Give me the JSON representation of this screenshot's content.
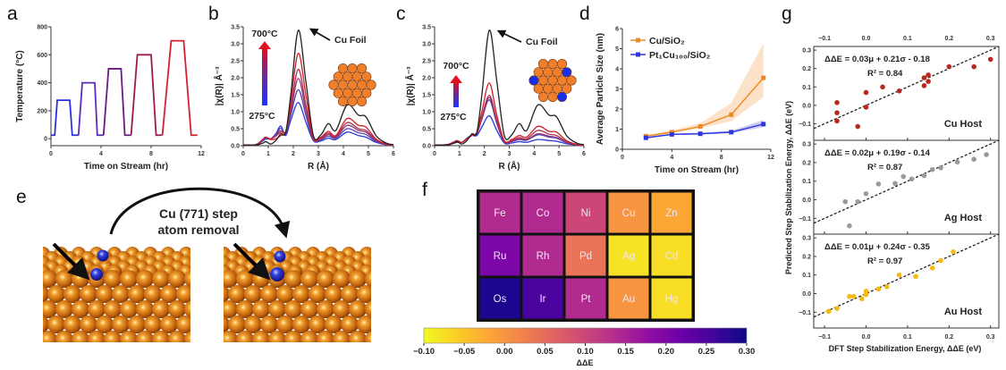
{
  "panel_labels": {
    "a": "a",
    "b": "b",
    "c": "c",
    "d": "d",
    "e": "e",
    "f": "f",
    "g": "g"
  },
  "panel_e": {
    "caption_line1": "Cu (771) step",
    "caption_line2": "atom removal",
    "copper_color": "#c8680f",
    "dopant_color": "#2a30d0"
  },
  "chart_data": [
    {
      "panel": "a",
      "type": "line",
      "xlabel": "Time on Stream (hr)",
      "ylabel": "Temperature (°C)",
      "xlim": [
        0,
        12
      ],
      "ylim": [
        -50,
        800
      ],
      "xtick_labels": [
        "0",
        "4",
        "8",
        "12"
      ],
      "ytick_labels": [
        "0",
        "200",
        "400",
        "600",
        "800"
      ],
      "series": [
        {
          "color": "#2b2fe0",
          "x": [
            0,
            0.3,
            0.5,
            1.5,
            1.7,
            2.2
          ],
          "y": [
            25,
            25,
            275,
            275,
            25,
            25
          ]
        },
        {
          "color": "#5a2bbb",
          "x": [
            2.2,
            2.5,
            3.5,
            3.7,
            4.2
          ],
          "y": [
            25,
            400,
            400,
            25,
            25
          ]
        },
        {
          "color": "#6c1a84",
          "x": [
            4.2,
            4.6,
            5.6,
            5.9,
            6.4
          ],
          "y": [
            25,
            500,
            500,
            25,
            25
          ]
        },
        {
          "color": "#9c1a55",
          "x": [
            6.4,
            6.9,
            8.0,
            8.4,
            8.9
          ],
          "y": [
            25,
            600,
            600,
            25,
            25
          ]
        },
        {
          "color": "#d4202f",
          "x": [
            8.9,
            9.6,
            10.6,
            11.2,
            11.7
          ],
          "y": [
            25,
            700,
            700,
            25,
            25
          ]
        }
      ]
    },
    {
      "panel": "b",
      "type": "line",
      "xlabel": "R (Å)",
      "ylabel": "|χ(R)| Å⁻³",
      "xlim": [
        0,
        6
      ],
      "ylim": [
        0,
        3.5
      ],
      "xtick_labels": [
        "0",
        "1",
        "2",
        "3",
        "4",
        "5",
        "6"
      ],
      "ytick_labels": [
        "0.0",
        "0.5",
        "1.0",
        "1.5",
        "2.0",
        "2.5",
        "3.0",
        "3.5"
      ],
      "annotations": {
        "high_temp": "700°C",
        "low_temp": "275°C",
        "reference": "Cu Foil"
      },
      "x": [
        0,
        0.5,
        0.8,
        0.9,
        1.1,
        1.3,
        1.5,
        1.7,
        1.9,
        2.2,
        2.5,
        2.8,
        3.1,
        3.4,
        3.7,
        4.15,
        4.6,
        4.9,
        5.3,
        5.7,
        6
      ],
      "series": [
        {
          "name": "Cu Foil",
          "color": "#222222",
          "y": [
            0.02,
            0.02,
            0.08,
            0.12,
            0.05,
            0.15,
            0.35,
            0.4,
            1.5,
            3.4,
            1.9,
            0.3,
            0.32,
            0.65,
            0.45,
            1.2,
            0.9,
            0.85,
            0.3,
            0.08,
            0.03
          ]
        },
        {
          "color": "#d0202a",
          "y": [
            0.02,
            0.03,
            0.2,
            0.25,
            0.18,
            0.2,
            0.3,
            0.42,
            1.3,
            2.72,
            1.5,
            0.25,
            0.25,
            0.42,
            0.3,
            0.8,
            0.6,
            0.55,
            0.2,
            0.05,
            0.02
          ]
        },
        {
          "color": "#b03050",
          "y": [
            0.02,
            0.03,
            0.2,
            0.25,
            0.2,
            0.28,
            0.4,
            0.42,
            1.1,
            2.25,
            1.2,
            0.22,
            0.22,
            0.37,
            0.27,
            0.68,
            0.5,
            0.45,
            0.18,
            0.05,
            0.02
          ]
        },
        {
          "color": "#8a3a78",
          "y": [
            0.02,
            0.03,
            0.2,
            0.25,
            0.2,
            0.3,
            0.45,
            0.4,
            1.0,
            1.98,
            1.05,
            0.2,
            0.2,
            0.33,
            0.25,
            0.6,
            0.45,
            0.4,
            0.15,
            0.04,
            0.02
          ]
        },
        {
          "color": "#5a40b0",
          "y": [
            0.02,
            0.03,
            0.18,
            0.22,
            0.2,
            0.32,
            0.52,
            0.35,
            0.9,
            1.65,
            0.9,
            0.17,
            0.17,
            0.28,
            0.22,
            0.5,
            0.38,
            0.33,
            0.13,
            0.04,
            0.02
          ]
        },
        {
          "color": "#2a3ad8",
          "y": [
            0.02,
            0.03,
            0.15,
            0.2,
            0.2,
            0.35,
            0.58,
            0.3,
            0.75,
            1.27,
            0.7,
            0.15,
            0.14,
            0.22,
            0.18,
            0.4,
            0.3,
            0.25,
            0.1,
            0.03,
            0.02
          ]
        }
      ]
    },
    {
      "panel": "c",
      "type": "line",
      "xlabel": "R (Å)",
      "ylabel": "|χ(R)| Å⁻³",
      "xlim": [
        0,
        6
      ],
      "ylim": [
        0,
        3.5
      ],
      "xtick_labels": [
        "0",
        "1",
        "2",
        "3",
        "4",
        "5",
        "6"
      ],
      "ytick_labels": [
        "0.0",
        "0.5",
        "1.0",
        "1.5",
        "2.0",
        "2.5",
        "3.0",
        "3.5"
      ],
      "annotations": {
        "high_temp": "700°C",
        "low_temp": "275°C",
        "reference": "Cu Foil"
      },
      "x": [
        0,
        0.5,
        0.8,
        0.9,
        1.1,
        1.3,
        1.5,
        1.7,
        1.9,
        2.2,
        2.5,
        2.8,
        3.1,
        3.4,
        3.7,
        4.15,
        4.6,
        4.9,
        5.3,
        5.7,
        6
      ],
      "series": [
        {
          "name": "Cu Foil",
          "color": "#222222",
          "y": [
            0.02,
            0.02,
            0.08,
            0.12,
            0.05,
            0.15,
            0.35,
            0.4,
            1.5,
            3.4,
            1.9,
            0.3,
            0.32,
            0.65,
            0.45,
            1.2,
            0.9,
            0.85,
            0.3,
            0.08,
            0.03
          ]
        },
        {
          "color": "#d0202a",
          "y": [
            0.02,
            0.03,
            0.12,
            0.15,
            0.1,
            0.2,
            0.3,
            0.4,
            1.0,
            1.85,
            0.9,
            0.15,
            0.18,
            0.3,
            0.25,
            0.57,
            0.42,
            0.4,
            0.15,
            0.04,
            0.02
          ]
        },
        {
          "color": "#b03050",
          "y": [
            0.02,
            0.03,
            0.12,
            0.14,
            0.1,
            0.2,
            0.3,
            0.38,
            0.85,
            1.48,
            0.75,
            0.13,
            0.15,
            0.24,
            0.2,
            0.45,
            0.34,
            0.3,
            0.12,
            0.03,
            0.02
          ]
        },
        {
          "color": "#8a3a78",
          "y": [
            0.02,
            0.03,
            0.1,
            0.13,
            0.1,
            0.2,
            0.3,
            0.36,
            0.8,
            1.42,
            0.7,
            0.12,
            0.13,
            0.2,
            0.17,
            0.35,
            0.28,
            0.24,
            0.1,
            0.03,
            0.02
          ]
        },
        {
          "color": "#5a40b0",
          "y": [
            0.02,
            0.03,
            0.1,
            0.12,
            0.1,
            0.22,
            0.32,
            0.35,
            0.78,
            1.35,
            0.65,
            0.11,
            0.12,
            0.18,
            0.16,
            0.32,
            0.25,
            0.22,
            0.09,
            0.03,
            0.02
          ]
        },
        {
          "color": "#2a3ad8",
          "y": [
            0.02,
            0.03,
            0.08,
            0.1,
            0.1,
            0.22,
            0.3,
            0.3,
            0.55,
            0.88,
            0.45,
            0.08,
            0.08,
            0.12,
            0.1,
            0.18,
            0.15,
            0.13,
            0.06,
            0.02,
            0.02
          ]
        }
      ]
    },
    {
      "panel": "d",
      "type": "line",
      "xlabel": "Time on Stream (hr)",
      "ylabel": "Average Particle Size (nm)",
      "xlim": [
        0,
        12
      ],
      "ylim": [
        0,
        6
      ],
      "xtick_labels": [
        "0",
        "4",
        "8",
        "12"
      ],
      "ytick_labels": [
        "0",
        "1",
        "2",
        "3",
        "4",
        "5",
        "6"
      ],
      "legend": "top-left",
      "series": [
        {
          "name": "Cu/SiO₂",
          "color": "#ef8a22",
          "x": [
            1.9,
            4,
            6.3,
            8.8,
            11.4
          ],
          "y": [
            0.65,
            0.85,
            1.13,
            1.72,
            3.55
          ],
          "lower": [
            0.6,
            0.8,
            1.05,
            1.4,
            2.6
          ],
          "upper": [
            0.7,
            0.95,
            1.3,
            2.3,
            5.25
          ]
        },
        {
          "name": "Pt₁Cu₁₀₀/SiO₂",
          "color": "#2c34e0",
          "x": [
            1.9,
            4,
            6.3,
            8.8,
            11.4
          ],
          "y": [
            0.57,
            0.74,
            0.77,
            0.85,
            1.25
          ],
          "lower": [
            0.53,
            0.7,
            0.73,
            0.8,
            1.1
          ],
          "upper": [
            0.61,
            0.78,
            0.82,
            0.92,
            1.45
          ]
        }
      ]
    },
    {
      "panel": "f",
      "type": "heatmap",
      "colorbar_label": "ΔΔE",
      "clim": [
        -0.1,
        0.3
      ],
      "colormap": "plasma (reversed)",
      "colorbar_tick_labels": [
        "−0.10",
        "−0.05",
        "0.00",
        "0.05",
        "0.10",
        "0.15",
        "0.20",
        "0.25",
        "0.30"
      ],
      "rows": [
        [
          {
            "el": "Fe",
            "v": 0.14
          },
          {
            "el": "Co",
            "v": 0.14
          },
          {
            "el": "Ni",
            "v": 0.1
          },
          {
            "el": "Cu",
            "v": 0.0
          },
          {
            "el": "Zn",
            "v": -0.02
          }
        ],
        [
          {
            "el": "Ru",
            "v": 0.2
          },
          {
            "el": "Rh",
            "v": 0.14
          },
          {
            "el": "Pd",
            "v": 0.04
          },
          {
            "el": "Ag",
            "v": -0.08
          },
          {
            "el": "Cd",
            "v": -0.075
          }
        ],
        [
          {
            "el": "Os",
            "v": 0.29
          },
          {
            "el": "Ir",
            "v": 0.25
          },
          {
            "el": "Pt",
            "v": 0.14
          },
          {
            "el": "Au",
            "v": 0.0
          },
          {
            "el": "Hg",
            "v": -0.075
          }
        ]
      ]
    },
    {
      "panel": "g",
      "type": "scatter",
      "xlabel": "DFT Step Stabilization Energy, ΔΔE (eV)",
      "ylabel": "Predicted Step Stabilization Energy, ΔΔE (eV)",
      "xlim": [
        -0.126,
        0.32
      ],
      "xtick_labels": [
        "−0.1",
        "0.0",
        "0.1",
        "0.2",
        "0.3"
      ],
      "ytick_labels": [
        "−0.1",
        "0.0",
        "0.1",
        "0.2",
        "0.3"
      ],
      "parity_line": "dashed y = x",
      "subplots": [
        {
          "host": "Cu Host",
          "equation": "ΔΔE = 0.03μ + 0.21σ - 0.18",
          "r2": "R² = 0.84",
          "color": "#b8281c",
          "ylim": [
            -0.19,
            0.32
          ],
          "x": [
            -0.07,
            -0.07,
            -0.07,
            -0.02,
            0,
            0,
            0.04,
            0.08,
            0.14,
            0.14,
            0.15,
            0.15,
            0.2,
            0.26,
            0.3
          ],
          "y": [
            0.015,
            -0.04,
            -0.085,
            -0.115,
            0.07,
            -0.01,
            0.1,
            0.078,
            0.15,
            0.107,
            0.165,
            0.13,
            0.21,
            0.21,
            0.25
          ]
        },
        {
          "host": "Ag Host",
          "equation": "ΔΔE = 0.02μ + 0.19σ - 0.14",
          "r2": "R² = 0.87",
          "color": "#9a9a9a",
          "ylim": [
            -0.185,
            0.32
          ],
          "x": [
            -0.05,
            -0.04,
            -0.02,
            0,
            0.03,
            0.07,
            0.09,
            0.11,
            0.14,
            0.16,
            0.18,
            0.22,
            0.26,
            0.29
          ],
          "y": [
            -0.01,
            -0.14,
            -0.01,
            0.033,
            0.085,
            0.088,
            0.125,
            0.112,
            0.13,
            0.163,
            0.172,
            0.203,
            0.218,
            0.243
          ]
        },
        {
          "host": "Au Host",
          "equation": "ΔΔE = 0.01μ + 0.24σ - 0.35",
          "r2": "R² = 0.97",
          "color": "#f5bb12",
          "ylim": [
            -0.185,
            0.32
          ],
          "x": [
            -0.09,
            -0.07,
            -0.04,
            -0.03,
            -0.01,
            0,
            0,
            0.03,
            0.05,
            0.08,
            0.12,
            0.16,
            0.18,
            0.21
          ],
          "y": [
            -0.095,
            -0.08,
            -0.015,
            -0.015,
            -0.028,
            0.013,
            -0.005,
            0.025,
            0.037,
            0.1,
            0.092,
            0.138,
            0.178,
            0.225
          ]
        }
      ]
    }
  ]
}
